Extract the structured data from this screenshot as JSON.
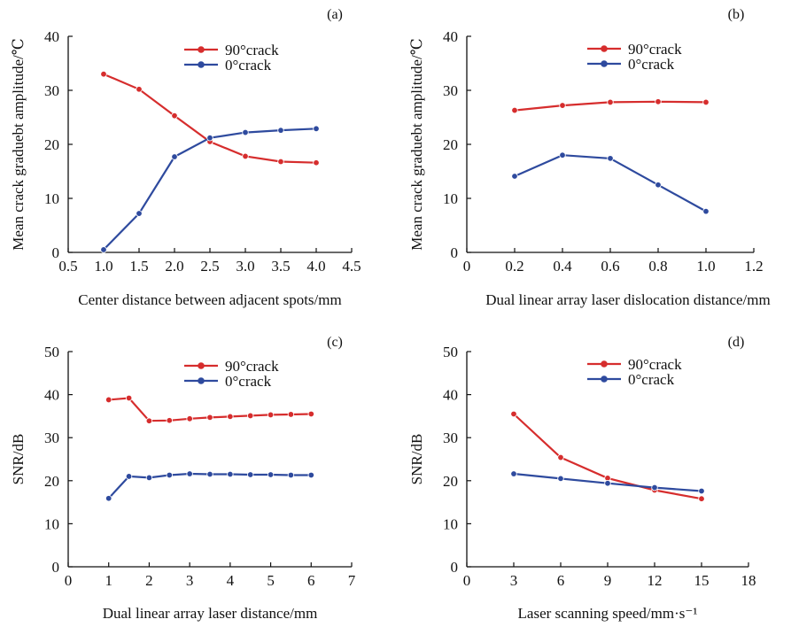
{
  "figure": {
    "colors": {
      "red": "#d62d2d",
      "blue": "#2e4a9e"
    }
  },
  "chart_data": [
    {
      "type": "line",
      "panel": "(a)",
      "xlabel": "Center distance between adjacent spots/mm",
      "ylabel": "Mean crack graduebt amplitude/℃",
      "xlim": [
        0.5,
        4.5
      ],
      "ylim": [
        0,
        40
      ],
      "xticks": [
        "0.5",
        "1.0",
        "1.5",
        "2.0",
        "2.5",
        "3.0",
        "3.5",
        "4.0",
        "4.5"
      ],
      "yticks": [
        "0",
        "10",
        "20",
        "30",
        "40"
      ],
      "legend_position": "top-center",
      "series": [
        {
          "name": "90°crack",
          "color": "#d62d2d",
          "x": [
            1.0,
            1.5,
            2.0,
            2.5,
            3.0,
            3.5,
            4.0
          ],
          "values": [
            33.0,
            30.2,
            25.3,
            20.5,
            17.8,
            16.8,
            16.6
          ]
        },
        {
          "name": "0°crack",
          "color": "#2e4a9e",
          "x": [
            1.0,
            1.5,
            2.0,
            2.5,
            3.0,
            3.5,
            4.0
          ],
          "values": [
            0.5,
            7.2,
            17.7,
            21.2,
            22.2,
            22.6,
            22.9
          ]
        }
      ]
    },
    {
      "type": "line",
      "panel": "(b)",
      "xlabel": "Dual linear array laser dislocation distance/mm",
      "ylabel": "Mean crack graduebt amplitude/℃",
      "xlim": [
        0,
        1.2
      ],
      "ylim": [
        0,
        40
      ],
      "xticks": [
        "0",
        "0.2",
        "0.4",
        "0.6",
        "0.8",
        "1.0",
        "1.2"
      ],
      "yticks": [
        "0",
        "10",
        "20",
        "30",
        "40"
      ],
      "legend_position": "top-center",
      "series": [
        {
          "name": "90°crack",
          "color": "#d62d2d",
          "x": [
            0.2,
            0.4,
            0.6,
            0.8,
            1.0
          ],
          "values": [
            26.3,
            27.2,
            27.8,
            27.9,
            27.8
          ]
        },
        {
          "name": "0°crack",
          "color": "#2e4a9e",
          "x": [
            0.2,
            0.4,
            0.6,
            0.8,
            1.0
          ],
          "values": [
            14.1,
            18.0,
            17.4,
            12.5,
            7.6
          ]
        }
      ]
    },
    {
      "type": "line",
      "panel": "(c)",
      "xlabel": "Dual linear array laser distance/mm",
      "ylabel": "SNR/dB",
      "xlim": [
        0,
        7
      ],
      "ylim": [
        0,
        50
      ],
      "xticks": [
        "0",
        "1",
        "2",
        "3",
        "4",
        "5",
        "6",
        "7"
      ],
      "yticks": [
        "0",
        "10",
        "20",
        "30",
        "40",
        "50"
      ],
      "legend_position": "top-center",
      "series": [
        {
          "name": "90°crack",
          "color": "#d62d2d",
          "x": [
            1.0,
            1.5,
            2.0,
            2.5,
            3.0,
            3.5,
            4.0,
            4.5,
            5.0,
            5.5,
            6.0
          ],
          "values": [
            38.8,
            39.2,
            33.9,
            34.0,
            34.4,
            34.7,
            34.9,
            35.1,
            35.3,
            35.4,
            35.5
          ]
        },
        {
          "name": "0°crack",
          "color": "#2e4a9e",
          "x": [
            1.0,
            1.5,
            2.0,
            2.5,
            3.0,
            3.5,
            4.0,
            4.5,
            5.0,
            5.5,
            6.0
          ],
          "values": [
            15.9,
            21.0,
            20.7,
            21.3,
            21.6,
            21.5,
            21.5,
            21.4,
            21.4,
            21.3,
            21.3
          ]
        }
      ]
    },
    {
      "type": "line",
      "panel": "(d)",
      "xlabel": "Laser scanning speed/mm·s⁻¹",
      "ylabel": "SNR/dB",
      "xlim": [
        0,
        18
      ],
      "ylim": [
        0,
        50
      ],
      "xticks": [
        "0",
        "3",
        "6",
        "9",
        "12",
        "15",
        "18"
      ],
      "yticks": [
        "0",
        "10",
        "20",
        "30",
        "40",
        "50"
      ],
      "legend_position": "top-center",
      "series": [
        {
          "name": "90°crack",
          "color": "#d62d2d",
          "x": [
            3,
            6,
            9,
            12,
            15
          ],
          "values": [
            35.5,
            25.4,
            20.6,
            17.8,
            15.8
          ]
        },
        {
          "name": "0°crack",
          "color": "#2e4a9e",
          "x": [
            3,
            6,
            9,
            12,
            15
          ],
          "values": [
            21.6,
            20.5,
            19.4,
            18.4,
            17.6
          ]
        }
      ]
    }
  ]
}
